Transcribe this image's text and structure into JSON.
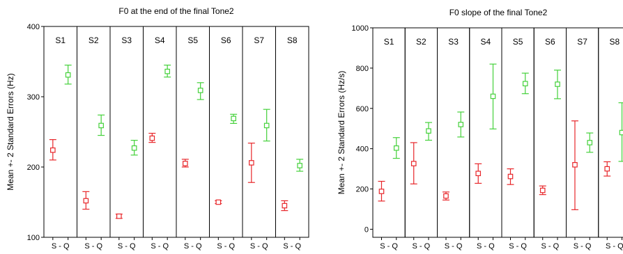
{
  "chart_data": [
    {
      "type": "errorbar",
      "title": "F0 at the end of the final Tone2",
      "ylabel": "Mean +- 2 Standard Errors (Hz)",
      "ylim": [
        100,
        400
      ],
      "yticks": [
        100,
        200,
        300,
        400
      ],
      "panels": [
        "S1",
        "S2",
        "S3",
        "S4",
        "S5",
        "S6",
        "S7",
        "S8"
      ],
      "x_tick_label": "S - Q",
      "series": [
        {
          "name": "S",
          "color": "#e8262a",
          "mean": [
            224,
            152,
            130,
            241,
            205,
            150,
            206,
            145
          ],
          "lower": [
            210,
            140,
            127,
            235,
            200,
            148,
            178,
            138
          ],
          "upper": [
            239,
            165,
            133,
            248,
            211,
            152,
            234,
            152
          ]
        },
        {
          "name": "Q",
          "color": "#44d13a",
          "mean": [
            331,
            259,
            227,
            336,
            309,
            269,
            259,
            202
          ],
          "lower": [
            318,
            245,
            217,
            328,
            296,
            262,
            237,
            194
          ],
          "upper": [
            345,
            274,
            238,
            345,
            320,
            275,
            282,
            211
          ]
        }
      ]
    },
    {
      "type": "errorbar",
      "title": "F0 slope of the final Tone2",
      "ylabel": "Mean +- 2 Standard Errors (Hz/s)",
      "ylim": [
        -40,
        1000
      ],
      "yticks": [
        0,
        200,
        400,
        600,
        800,
        1000
      ],
      "panels": [
        "S1",
        "S2",
        "S3",
        "S4",
        "S5",
        "S6",
        "S7",
        "S8"
      ],
      "x_tick_label": "S - Q",
      "series": [
        {
          "name": "S",
          "color": "#e8262a",
          "mean": [
            188,
            326,
            165,
            277,
            262,
            193,
            320,
            300
          ],
          "lower": [
            140,
            225,
            145,
            228,
            222,
            172,
            97,
            264
          ],
          "upper": [
            238,
            430,
            185,
            325,
            300,
            215,
            538,
            335
          ]
        },
        {
          "name": "Q",
          "color": "#44d13a",
          "mean": [
            403,
            488,
            520,
            660,
            723,
            720,
            430,
            480
          ],
          "lower": [
            352,
            442,
            458,
            498,
            673,
            648,
            382,
            337
          ],
          "upper": [
            455,
            530,
            582,
            820,
            775,
            790,
            478,
            628
          ]
        }
      ]
    }
  ]
}
